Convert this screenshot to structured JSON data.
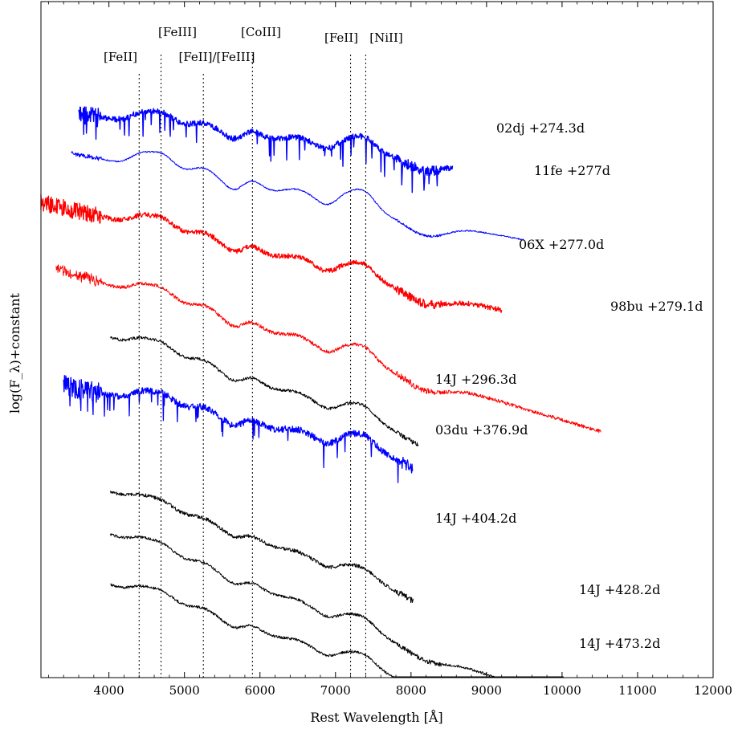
{
  "chart_data": {
    "type": "line",
    "xlabel": "Rest Wavelength [Å]",
    "ylabel": "log(F_λ)+constant",
    "xlim": [
      3100,
      12000
    ],
    "x_ticks": [
      4000,
      5000,
      6000,
      7000,
      8000,
      9000,
      10000,
      11000,
      12000
    ],
    "grid": false,
    "legend": "none",
    "line_markers": [
      {
        "label": "[FeII]",
        "x": 4400
      },
      {
        "label": "[FeIII]",
        "x": 4690
      },
      {
        "label": "[FeII]/[FeIII]",
        "x": 5250
      },
      {
        "label": "[CoIII]",
        "x": 5900
      },
      {
        "label": "[FeII]",
        "x": 7200
      },
      {
        "label": "[NiII]",
        "x": 7400
      }
    ],
    "series": [
      {
        "name": "02dj +274.3d",
        "color": "#0000ff",
        "x_range": [
          3600,
          8550
        ],
        "noise": 3.5,
        "lw": 1.4
      },
      {
        "name": "11fe +277d",
        "color": "#0000ff",
        "x_range": [
          3500,
          9500
        ],
        "noise": 0.8,
        "lw": 1.0
      },
      {
        "name": "06X +277.0d",
        "color": "#ff0000",
        "x_range": [
          3050,
          9200
        ],
        "noise": 3.0,
        "lw": 1.3
      },
      {
        "name": "98bu +279.1d",
        "color": "#ff0000",
        "x_range": [
          3300,
          10520
        ],
        "noise": 2.2,
        "lw": 1.0
      },
      {
        "name": "14J +296.3d",
        "color": "#000000",
        "x_range": [
          4020,
          8100
        ],
        "noise": 1.8,
        "lw": 1.0
      },
      {
        "name": "03du +376.9d",
        "color": "#0000ff",
        "x_range": [
          3400,
          8020
        ],
        "noise": 4.0,
        "lw": 1.3
      },
      {
        "name": "14J +404.2d",
        "color": "#000000",
        "x_range": [
          4020,
          8030
        ],
        "noise": 2.2,
        "lw": 1.0
      },
      {
        "name": "14J +428.2d",
        "color": "#000000",
        "x_range": [
          4020,
          10020
        ],
        "noise": 1.6,
        "lw": 1.0
      },
      {
        "name": "14J +473.2d",
        "color": "#000000",
        "x_range": [
          4020,
          10000
        ],
        "noise": 1.6,
        "lw": 1.0
      }
    ]
  }
}
